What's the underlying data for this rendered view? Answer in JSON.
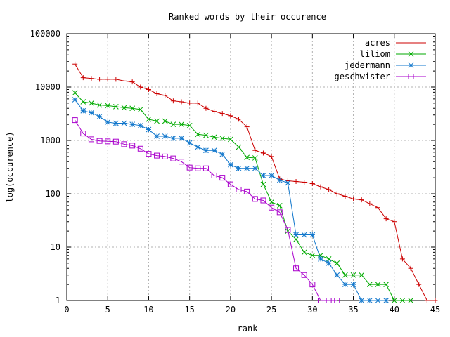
{
  "chart_data": {
    "type": "line",
    "title": "Ranked words by their occurence",
    "xlabel": "rank",
    "ylabel": "log(occurence)",
    "xlim": [
      0,
      45
    ],
    "ylim": [
      1,
      100000
    ],
    "yscale": "log",
    "grid": true,
    "legend_position": "top-right",
    "x_ticks": [
      "0",
      "5",
      "10",
      "15",
      "20",
      "25",
      "30",
      "35",
      "40",
      "45"
    ],
    "y_ticks": [
      "1",
      "10",
      "100",
      "1000",
      "10000",
      "100000"
    ],
    "series": [
      {
        "name": "acres",
        "color": "#cc0000",
        "marker": "plus",
        "points": [
          [
            1,
            27000
          ],
          [
            2,
            15000
          ],
          [
            3,
            14500
          ],
          [
            4,
            14000
          ],
          [
            5,
            14000
          ],
          [
            6,
            14000
          ],
          [
            7,
            13000
          ],
          [
            8,
            12500
          ],
          [
            9,
            10000
          ],
          [
            10,
            9000
          ],
          [
            11,
            7500
          ],
          [
            12,
            7000
          ],
          [
            13,
            5500
          ],
          [
            14,
            5300
          ],
          [
            15,
            5000
          ],
          [
            16,
            5000
          ],
          [
            17,
            4000
          ],
          [
            18,
            3500
          ],
          [
            19,
            3200
          ],
          [
            20,
            2900
          ],
          [
            21,
            2500
          ],
          [
            22,
            1800
          ],
          [
            23,
            650
          ],
          [
            24,
            580
          ],
          [
            25,
            500
          ],
          [
            26,
            190
          ],
          [
            27,
            175
          ],
          [
            28,
            170
          ],
          [
            29,
            165
          ],
          [
            30,
            155
          ],
          [
            31,
            135
          ],
          [
            32,
            120
          ],
          [
            33,
            100
          ],
          [
            34,
            90
          ],
          [
            35,
            80
          ],
          [
            36,
            77
          ],
          [
            37,
            65
          ],
          [
            38,
            55
          ],
          [
            39,
            34
          ],
          [
            40,
            30
          ],
          [
            41,
            6
          ],
          [
            42,
            4
          ],
          [
            43,
            2
          ],
          [
            44,
            1
          ],
          [
            45,
            1
          ]
        ]
      },
      {
        "name": "liliom",
        "color": "#00aa00",
        "marker": "cross",
        "points": [
          [
            1,
            7800
          ],
          [
            2,
            5300
          ],
          [
            3,
            5000
          ],
          [
            4,
            4600
          ],
          [
            5,
            4500
          ],
          [
            6,
            4300
          ],
          [
            7,
            4100
          ],
          [
            8,
            4000
          ],
          [
            9,
            3800
          ],
          [
            10,
            2500
          ],
          [
            11,
            2300
          ],
          [
            12,
            2300
          ],
          [
            13,
            2000
          ],
          [
            14,
            2000
          ],
          [
            15,
            1900
          ],
          [
            16,
            1300
          ],
          [
            17,
            1250
          ],
          [
            18,
            1150
          ],
          [
            19,
            1100
          ],
          [
            20,
            1050
          ],
          [
            21,
            750
          ],
          [
            22,
            480
          ],
          [
            23,
            470
          ],
          [
            24,
            150
          ],
          [
            25,
            70
          ],
          [
            26,
            60
          ],
          [
            27,
            20
          ],
          [
            28,
            14
          ],
          [
            29,
            8
          ],
          [
            30,
            7
          ],
          [
            31,
            7
          ],
          [
            32,
            6
          ],
          [
            33,
            5
          ],
          [
            34,
            3
          ],
          [
            35,
            3
          ],
          [
            36,
            3
          ],
          [
            37,
            2
          ],
          [
            38,
            2
          ],
          [
            39,
            2
          ],
          [
            40,
            1
          ],
          [
            41,
            1
          ],
          [
            42,
            1
          ]
        ]
      },
      {
        "name": "jedermann",
        "color": "#1177cc",
        "marker": "star",
        "points": [
          [
            1,
            5800
          ],
          [
            2,
            3600
          ],
          [
            3,
            3300
          ],
          [
            4,
            2800
          ],
          [
            5,
            2200
          ],
          [
            6,
            2100
          ],
          [
            7,
            2100
          ],
          [
            8,
            2000
          ],
          [
            9,
            1900
          ],
          [
            10,
            1600
          ],
          [
            11,
            1200
          ],
          [
            12,
            1200
          ],
          [
            13,
            1100
          ],
          [
            14,
            1100
          ],
          [
            15,
            900
          ],
          [
            16,
            750
          ],
          [
            17,
            650
          ],
          [
            18,
            650
          ],
          [
            19,
            550
          ],
          [
            20,
            350
          ],
          [
            21,
            300
          ],
          [
            22,
            300
          ],
          [
            23,
            300
          ],
          [
            24,
            220
          ],
          [
            25,
            220
          ],
          [
            26,
            180
          ],
          [
            27,
            160
          ],
          [
            28,
            17
          ],
          [
            29,
            17
          ],
          [
            30,
            17
          ],
          [
            31,
            6
          ],
          [
            32,
            5
          ],
          [
            33,
            3
          ],
          [
            34,
            2
          ],
          [
            35,
            2
          ],
          [
            36,
            1
          ],
          [
            37,
            1
          ],
          [
            38,
            1
          ],
          [
            39,
            1
          ]
        ]
      },
      {
        "name": "geschwister",
        "color": "#aa00cc",
        "marker": "box",
        "points": [
          [
            1,
            2400
          ],
          [
            2,
            1350
          ],
          [
            3,
            1050
          ],
          [
            4,
            980
          ],
          [
            5,
            960
          ],
          [
            6,
            950
          ],
          [
            7,
            850
          ],
          [
            8,
            800
          ],
          [
            9,
            700
          ],
          [
            10,
            560
          ],
          [
            11,
            520
          ],
          [
            12,
            500
          ],
          [
            13,
            460
          ],
          [
            14,
            400
          ],
          [
            15,
            310
          ],
          [
            16,
            300
          ],
          [
            17,
            300
          ],
          [
            18,
            220
          ],
          [
            19,
            200
          ],
          [
            20,
            150
          ],
          [
            21,
            120
          ],
          [
            22,
            110
          ],
          [
            23,
            80
          ],
          [
            24,
            75
          ],
          [
            25,
            55
          ],
          [
            26,
            45
          ],
          [
            27,
            21
          ],
          [
            28,
            4
          ],
          [
            29,
            3
          ],
          [
            30,
            2
          ],
          [
            31,
            1
          ],
          [
            32,
            1
          ],
          [
            33,
            1
          ]
        ]
      }
    ]
  }
}
